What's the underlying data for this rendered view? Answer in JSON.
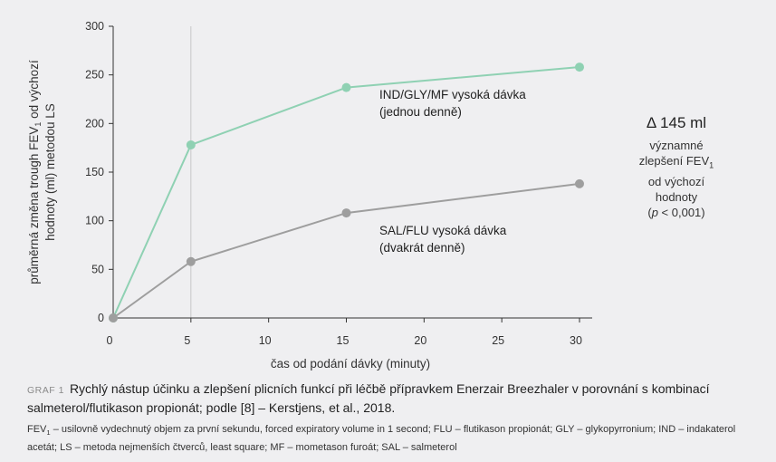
{
  "chart_data": {
    "type": "line",
    "x": [
      0,
      5,
      15,
      30
    ],
    "series": [
      {
        "name": "IND/GLY/MF vysoká dávka",
        "name_line2": "(jednou denně)",
        "values": [
          0,
          178,
          237,
          258
        ],
        "color": "#8fd1b3"
      },
      {
        "name": "SAL/FLU vysoká dávka",
        "name_line2": "(dvakrát denně)",
        "values": [
          0,
          58,
          108,
          138
        ],
        "color": "#9e9e9e"
      }
    ],
    "xlabel": "čas od podání dávky (minuty)",
    "ylabel_line1": "průměrná změna trough FEV",
    "ylabel_sub": "1",
    "ylabel_line1_end": " od výchozí",
    "ylabel_line2": "hodnoty (ml) metodou LS",
    "xlim": [
      0,
      30
    ],
    "ylim": [
      0,
      300
    ],
    "xticks": [
      0,
      5,
      10,
      15,
      20,
      25,
      30
    ],
    "yticks": [
      0,
      50,
      100,
      150,
      200,
      250,
      300
    ],
    "reference_line_x": 5,
    "grid": false
  },
  "annotation": {
    "delta": "Δ 145 ml",
    "line1": "významné",
    "line2_pre": "zlepšení FEV",
    "line2_sub": "1",
    "line3": "od výchozí",
    "line4": "hodnoty",
    "line5_pre": "(",
    "line5_p": "p",
    "line5_post": " < 0,001)"
  },
  "caption": {
    "tag": "GRAF 1",
    "title": "Rychlý nástup účinku a zlepšení plicních funkcí při léčbě přípravkem Enerzair Breezhaler v porovnání s kombinací salmeterol/flutikason propionát; podle [8] – Kerstjens, et al., 2018.",
    "footnote_fev": "FEV",
    "footnote_sub": "1",
    "footnote_rest": " – usilovně vydechnutý objem za první sekundu, forced expiratory volume in 1 second; FLU – flutikason propionát; GLY – glykopyrronium; IND – indakaterol acetát; LS – metoda nejmenších čtverců, least square; MF – mometason furoát; SAL – salmeterol"
  },
  "colors": {
    "background": "#efeff1",
    "axis": "#333333",
    "refline": "#c8c8c8"
  }
}
